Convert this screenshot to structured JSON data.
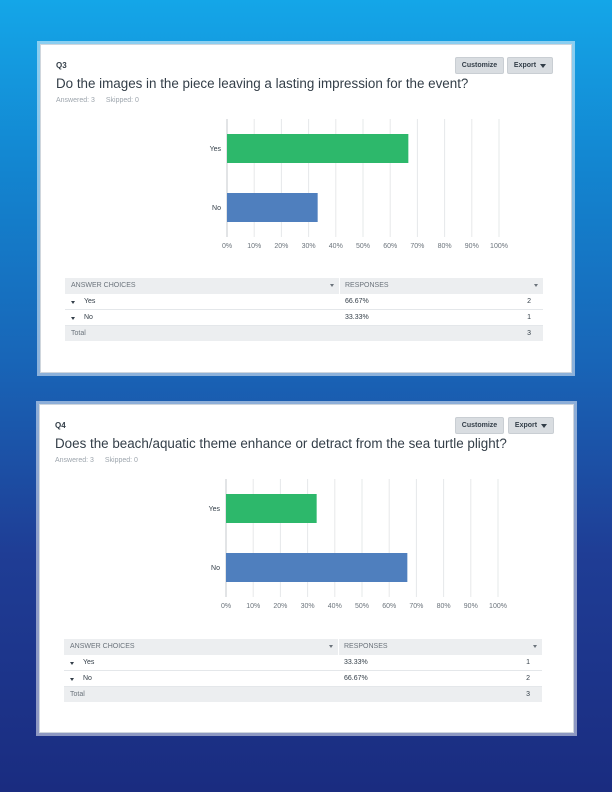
{
  "colors": {
    "yes": "#2db86b",
    "no": "#4f7fbe",
    "grid": "#e6e8ea",
    "axis": "#c4c9ce"
  },
  "questions": [
    {
      "number": "Q3",
      "title": "Do the images in the piece leaving a lasting impression for the event?",
      "answered": "Answered: 3",
      "skipped": "Skipped: 0",
      "buttons": {
        "customize": "Customize",
        "export": "Export"
      },
      "table": {
        "headers": {
          "answer_choices": "ANSWER CHOICES",
          "responses": "RESPONSES"
        },
        "rows": [
          {
            "choice": "Yes",
            "percent": "66.67%",
            "count": "2"
          },
          {
            "choice": "No",
            "percent": "33.33%",
            "count": "1"
          }
        ],
        "total_label": "Total",
        "total_count": "3"
      }
    },
    {
      "number": "Q4",
      "title": "Does the beach/aquatic theme enhance or detract from the sea turtle plight?",
      "answered": "Answered: 3",
      "skipped": "Skipped: 0",
      "buttons": {
        "customize": "Customize",
        "export": "Export"
      },
      "table": {
        "headers": {
          "answer_choices": "ANSWER CHOICES",
          "responses": "RESPONSES"
        },
        "rows": [
          {
            "choice": "Yes",
            "percent": "33.33%",
            "count": "1"
          },
          {
            "choice": "No",
            "percent": "66.67%",
            "count": "2"
          }
        ],
        "total_label": "Total",
        "total_count": "3"
      }
    }
  ],
  "chart_data": [
    {
      "type": "bar",
      "orientation": "horizontal",
      "categories": [
        "Yes",
        "No"
      ],
      "values": [
        66.67,
        33.33
      ],
      "xlim": [
        0,
        100
      ],
      "xticks": [
        "0%",
        "10%",
        "20%",
        "30%",
        "40%",
        "50%",
        "60%",
        "70%",
        "80%",
        "90%",
        "100%"
      ],
      "grid": true
    },
    {
      "type": "bar",
      "orientation": "horizontal",
      "categories": [
        "Yes",
        "No"
      ],
      "values": [
        33.33,
        66.67
      ],
      "xlim": [
        0,
        100
      ],
      "xticks": [
        "0%",
        "10%",
        "20%",
        "30%",
        "40%",
        "50%",
        "60%",
        "70%",
        "80%",
        "90%",
        "100%"
      ],
      "grid": true
    }
  ]
}
